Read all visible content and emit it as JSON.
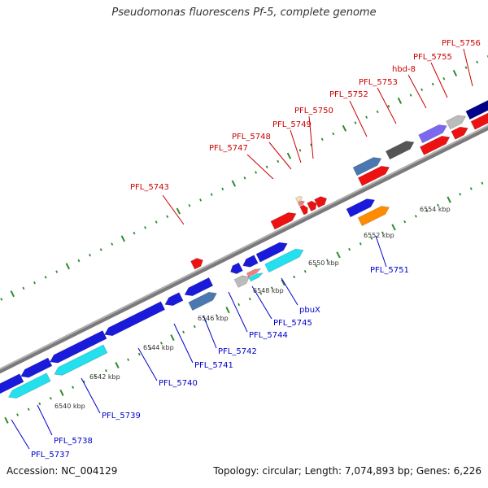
{
  "title": "Pseudomonas fluorescens Pf-5, complete genome",
  "accession": "Accession: NC_004129",
  "summary": "Topology: circular; Length: 7,074,893 bp; Genes: 6,226",
  "tick_labels": [
    "6540 kbp",
    "6542 kbp",
    "6544 kbp",
    "6546 kbp",
    "6548 kbp",
    "6550 kbp",
    "6552 kbp",
    "6554 kbp"
  ],
  "labels_top": [
    "PFL_5743",
    "PFL_5747",
    "PFL_5748",
    "PFL_5749",
    "PFL_5750",
    "PFL_5752",
    "PFL_5753",
    "hbd-8",
    "PFL_5755",
    "PFL_5756"
  ],
  "labels_bottom": [
    "PFL_5737",
    "PFL_5738",
    "PFL_5739",
    "PFL_5740",
    "PFL_5741",
    "PFL_5742",
    "PFL_5744",
    "PFL_5745",
    "pbuX",
    "PFL_5751"
  ],
  "colors": {
    "backbone": "#888888",
    "tick": "#2e8b2e",
    "label_top": "#cc0000",
    "label_bottom": "#0000cc",
    "gene_red": "#ee1111",
    "gene_blue": "#1a1adb",
    "gene_cyan": "#22e0ee",
    "gene_steel": "#4a78b0",
    "gene_orange": "#ff8c00",
    "gene_darkgray": "#555555",
    "gene_lightgray": "#bbbbbb",
    "gene_purple": "#7b68ee",
    "gene_navy": "#00008b",
    "gene_pink": "#f08080",
    "gene_tan": "#f5deb3"
  }
}
